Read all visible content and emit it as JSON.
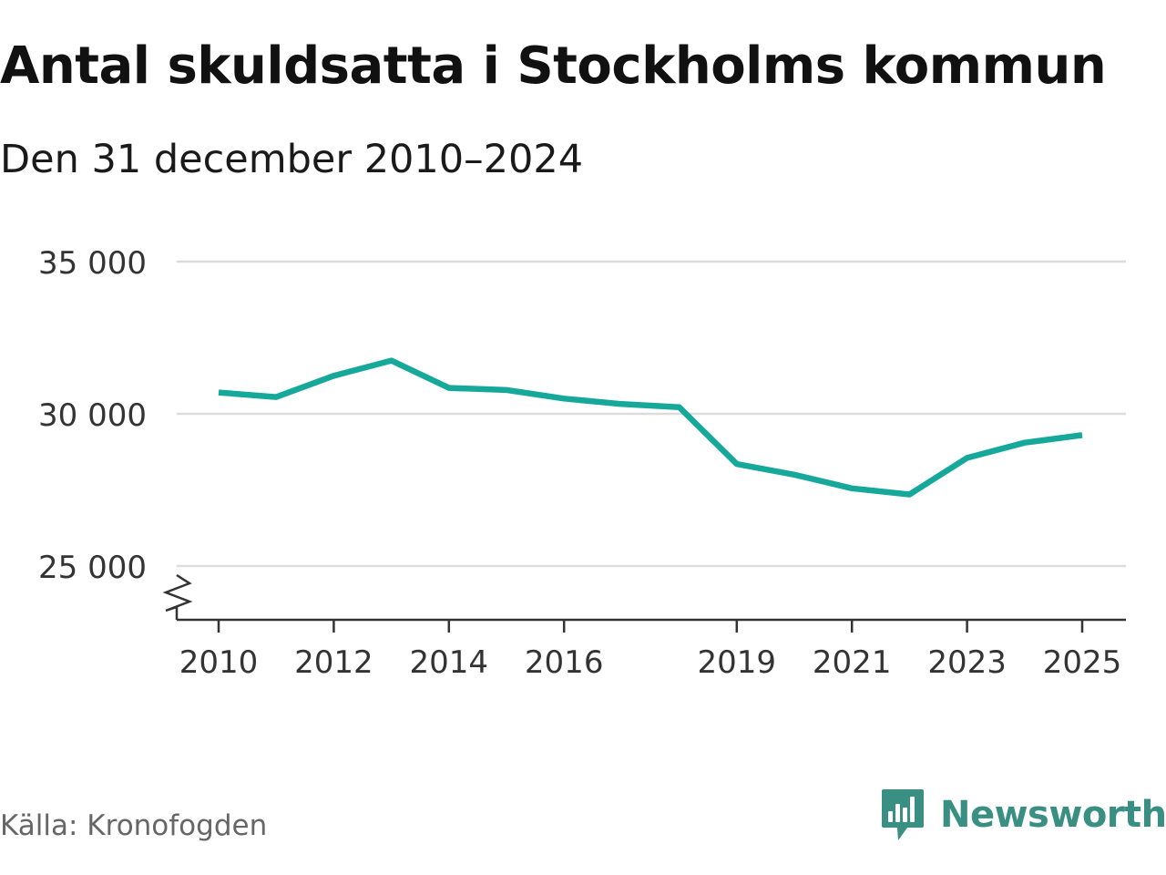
{
  "chart_data": {
    "type": "line",
    "title": "Antal skuldsatta i Stockholms kommun",
    "subtitle": "Den 31 december 2010–2024",
    "xlabel": "",
    "ylabel": "",
    "ylim": [
      23300,
      35000
    ],
    "yticks": [
      25000,
      30000,
      35000
    ],
    "ytick_labels": [
      "25 000",
      "30 000",
      "35 000"
    ],
    "xticks": [
      2010,
      2012,
      2014,
      2016,
      2019,
      2021,
      2023,
      2025
    ],
    "xtick_labels": [
      "2010",
      "2012",
      "2014",
      "2016",
      "2019",
      "2021",
      "2023",
      "2025"
    ],
    "xlim": [
      2009.3,
      2025.75
    ],
    "axis_break": true,
    "grid": true,
    "series": [
      {
        "name": "Antal skuldsatta",
        "color": "#16a89a",
        "x": [
          2010.0,
          2011.0,
          2012.0,
          2013.0,
          2014.0,
          2015.0,
          2016.0,
          2017.0,
          2018.0,
          2019.0,
          2020.0,
          2021.0,
          2022.0,
          2023.0,
          2024.0,
          2025.0
        ],
        "values": [
          30700,
          30550,
          31250,
          31750,
          30850,
          30780,
          30500,
          30320,
          30220,
          28350,
          28000,
          27550,
          27350,
          28550,
          29050,
          29300
        ]
      }
    ]
  },
  "source": "Källa: Kronofogden",
  "brand": {
    "name": "Newsworthy",
    "icon": "newsworthy-logo-icon",
    "color": "#3a8f83"
  }
}
